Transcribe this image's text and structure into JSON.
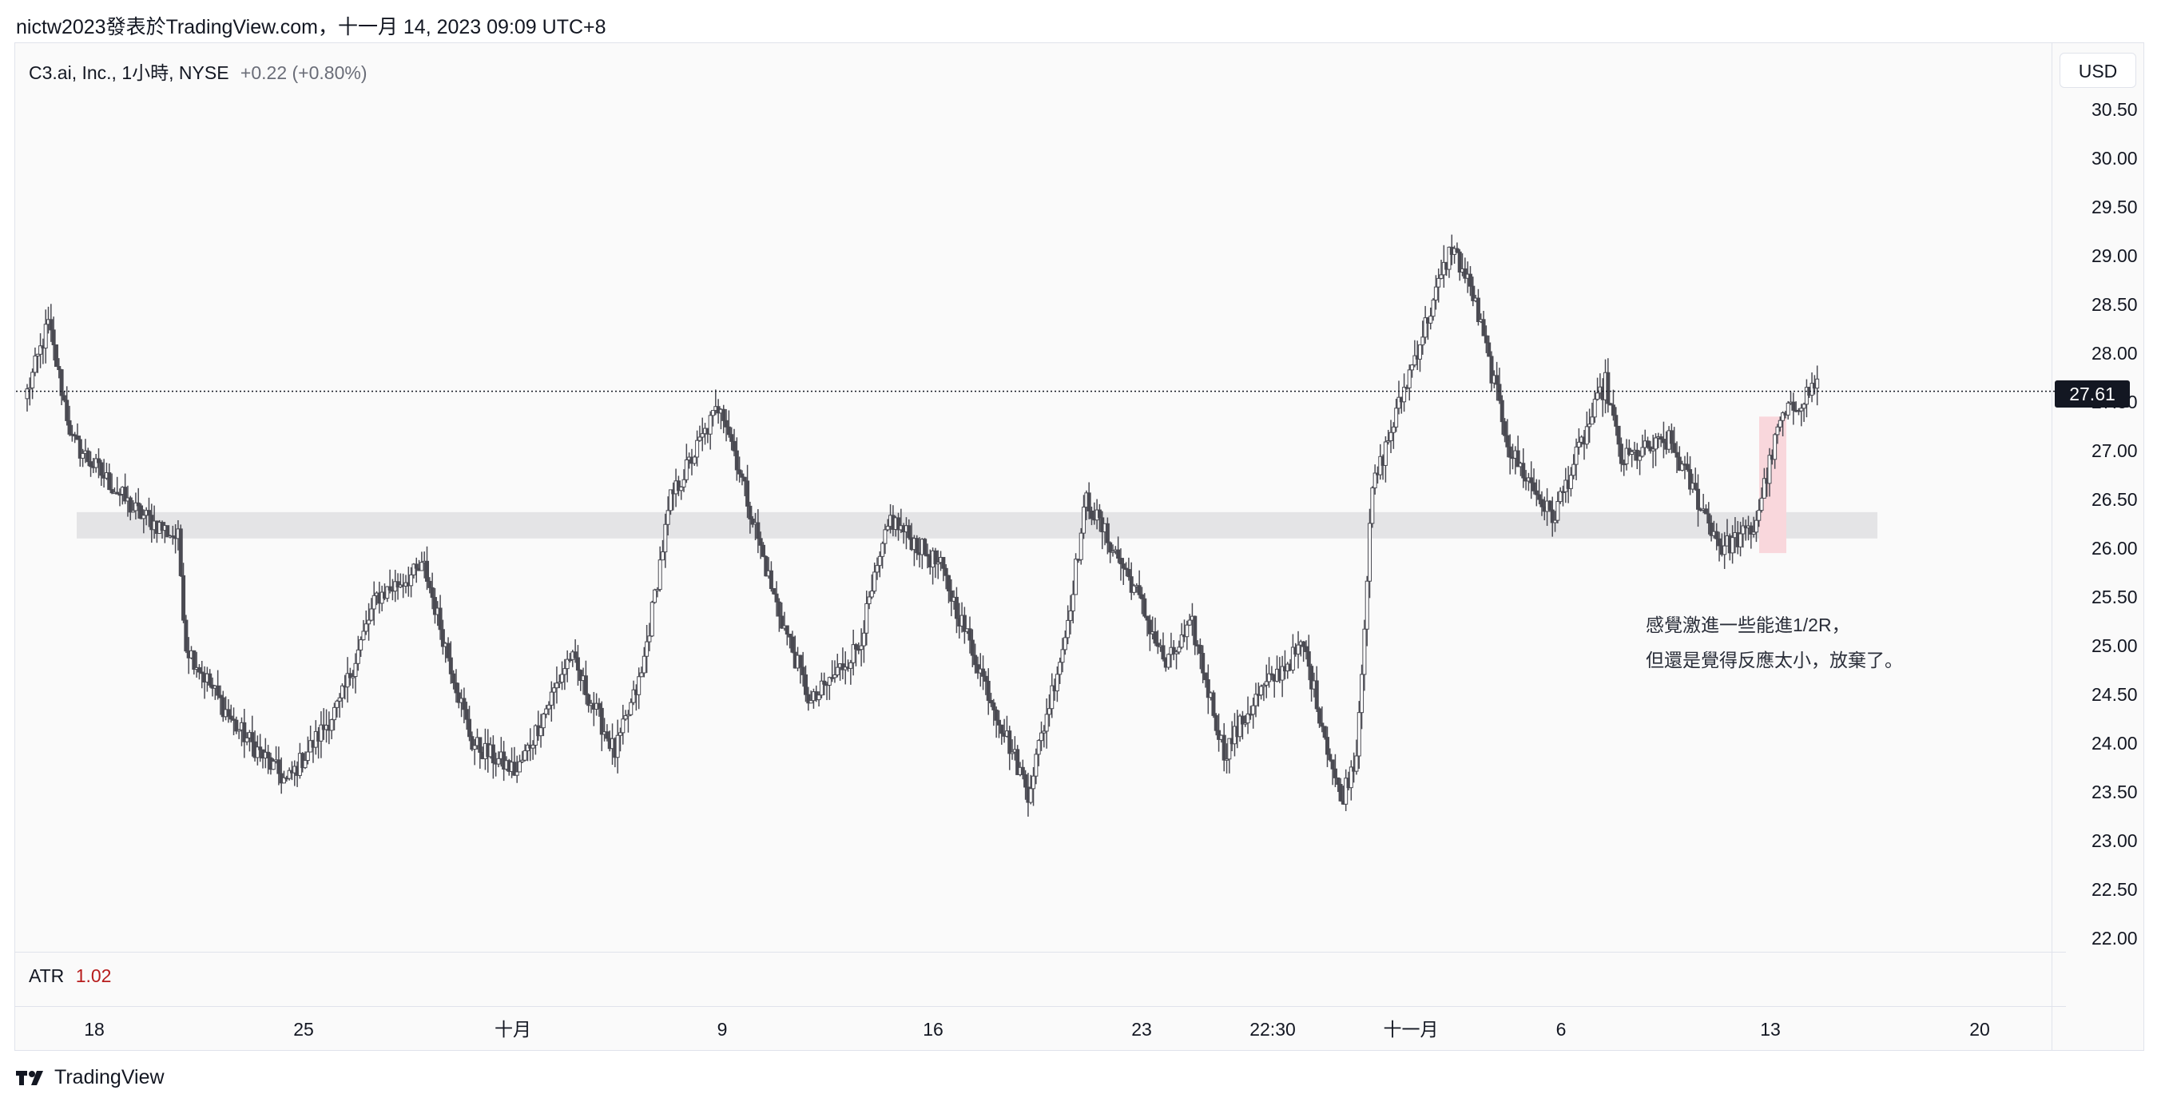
{
  "header": {
    "text": "nictw2023發表於TradingView.com，十一月 14, 2023 09:09 UTC+8"
  },
  "legend": {
    "symbol": "C3.ai, Inc., 1小時, NYSE",
    "change": "+0.22 (+0.80%)"
  },
  "currency_button": "USD",
  "last_price": "27.61",
  "indicator": {
    "name": "ATR",
    "value": "1.02"
  },
  "annotation": {
    "line1": "感覺激進一些能進1/2R，",
    "line2": "但還是覺得反應太小，放棄了。"
  },
  "footer": {
    "brand": "TradingView"
  },
  "colors": {
    "candle_body": "#ffffff",
    "candle_border": "#4a4a52",
    "zone": "#e4e4e6",
    "highlight": "#f9d7dc",
    "atr_value": "#b71c1c"
  },
  "chart_data": {
    "type": "candlestick",
    "ylim": [
      22.0,
      30.5
    ],
    "y_ticks": [
      "30.50",
      "30.00",
      "29.50",
      "29.00",
      "28.50",
      "28.00",
      "27.50",
      "27.00",
      "26.50",
      "26.00",
      "25.50",
      "25.00",
      "24.50",
      "24.00",
      "23.50",
      "23.00",
      "22.50",
      "22.00"
    ],
    "x_ticks": [
      "18",
      "25",
      "十月",
      "9",
      "16",
      "23",
      "22:30",
      "十一月",
      "6",
      "13",
      "20"
    ],
    "last_price_line": 27.61,
    "support_zone": [
      26.1,
      26.37
    ],
    "highlight_zone": [
      25.95,
      27.35
    ],
    "key_points": [
      [
        0,
        27.6
      ],
      [
        8,
        28.3
      ],
      [
        17,
        27.1
      ],
      [
        40,
        26.4
      ],
      [
        57,
        26.1
      ],
      [
        60,
        25.0
      ],
      [
        78,
        24.2
      ],
      [
        98,
        23.6
      ],
      [
        118,
        24.4
      ],
      [
        132,
        25.5
      ],
      [
        150,
        25.8
      ],
      [
        168,
        24.0
      ],
      [
        185,
        23.7
      ],
      [
        205,
        24.9
      ],
      [
        222,
        23.9
      ],
      [
        232,
        24.7
      ],
      [
        243,
        26.5
      ],
      [
        262,
        27.5
      ],
      [
        282,
        25.5
      ],
      [
        296,
        24.4
      ],
      [
        314,
        25.0
      ],
      [
        326,
        26.3
      ],
      [
        345,
        25.8
      ],
      [
        362,
        24.6
      ],
      [
        378,
        23.5
      ],
      [
        392,
        25.1
      ],
      [
        400,
        26.5
      ],
      [
        418,
        25.6
      ],
      [
        430,
        24.8
      ],
      [
        440,
        25.2
      ],
      [
        452,
        23.9
      ],
      [
        465,
        24.5
      ],
      [
        482,
        25.0
      ],
      [
        496,
        23.4
      ],
      [
        502,
        23.9
      ],
      [
        508,
        26.6
      ],
      [
        522,
        27.8
      ],
      [
        538,
        29.1
      ],
      [
        546,
        28.6
      ],
      [
        560,
        27.0
      ],
      [
        576,
        26.3
      ],
      [
        596,
        27.7
      ],
      [
        602,
        26.9
      ],
      [
        620,
        27.1
      ],
      [
        640,
        26.0
      ],
      [
        652,
        26.2
      ],
      [
        662,
        27.3
      ],
      [
        676,
        27.7
      ]
    ]
  }
}
